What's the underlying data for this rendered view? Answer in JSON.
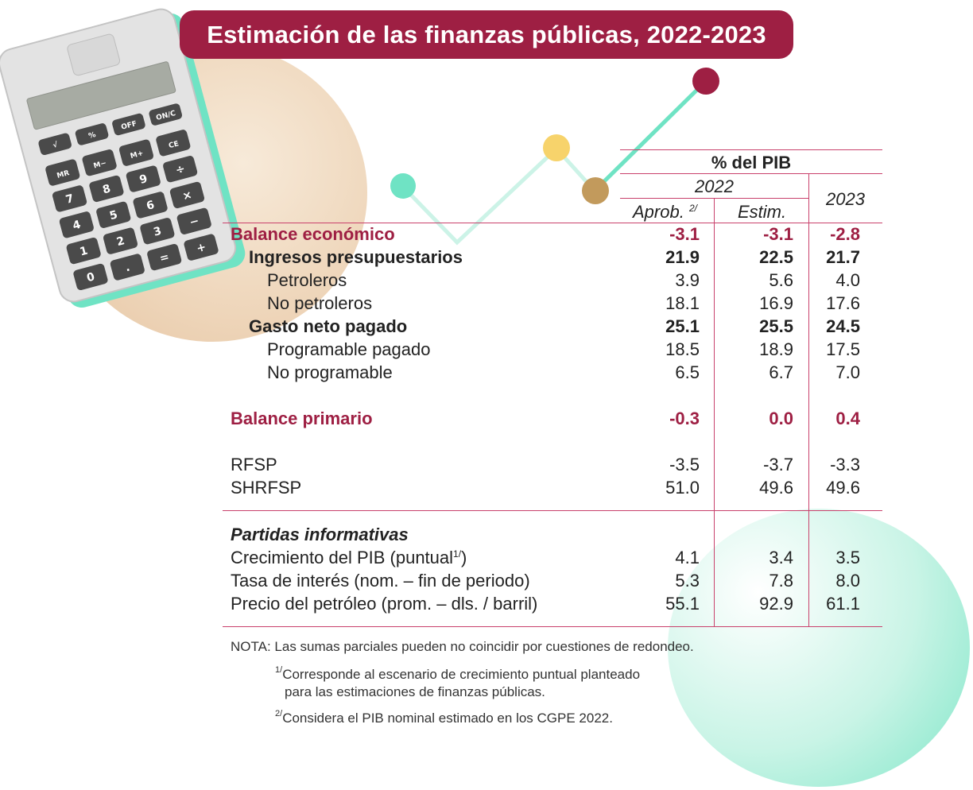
{
  "title": "Estimación de las finanzas públicas, 2022-2023",
  "header": {
    "unit": "% del PIB",
    "year_2022": "2022",
    "year_2023": "2023",
    "col_aprob": "Aprob.",
    "col_aprob_sup": "2/",
    "col_estim": "Estim."
  },
  "rows": {
    "balance_economico": {
      "label": "Balance económico",
      "aprob": "-3.1",
      "estim": "-3.1",
      "y2023": "-2.8"
    },
    "ingresos": {
      "label": "Ingresos presupuestarios",
      "aprob": "21.9",
      "estim": "22.5",
      "y2023": "21.7"
    },
    "petroleros": {
      "label": "Petroleros",
      "aprob": "3.9",
      "estim": "5.6",
      "y2023": "4.0"
    },
    "no_petroleros": {
      "label": "No petroleros",
      "aprob": "18.1",
      "estim": "16.9",
      "y2023": "17.6"
    },
    "gasto": {
      "label": "Gasto neto pagado",
      "aprob": "25.1",
      "estim": "25.5",
      "y2023": "24.5"
    },
    "programable": {
      "label": "Programable pagado",
      "aprob": "18.5",
      "estim": "18.9",
      "y2023": "17.5"
    },
    "no_programable": {
      "label": "No programable",
      "aprob": "6.5",
      "estim": "6.7",
      "y2023": "7.0"
    },
    "balance_primario": {
      "label": "Balance primario",
      "aprob": "-0.3",
      "estim": "0.0",
      "y2023": "0.4"
    },
    "rfsp": {
      "label": "RFSP",
      "aprob": "-3.5",
      "estim": "-3.7",
      "y2023": "-3.3"
    },
    "shrfsp": {
      "label": "SHRFSP",
      "aprob": "51.0",
      "estim": "49.6",
      "y2023": "49.6"
    }
  },
  "partidas": {
    "heading": "Partidas informativas",
    "crecimiento": {
      "label": "Crecimiento del PIB (puntual",
      "sup": "1/",
      "label_end": ")",
      "aprob": "4.1",
      "estim": "3.4",
      "y2023": "3.5"
    },
    "tasa": {
      "label": "Tasa de interés (nom.  – fin de periodo)",
      "aprob": "5.3",
      "estim": "7.8",
      "y2023": "8.0"
    },
    "precio": {
      "label": "Precio del petróleo (prom.  – dls. / barril)",
      "aprob": "55.1",
      "estim": "92.9",
      "y2023": "61.1"
    }
  },
  "notes": {
    "nota": "NOTA: Las sumas parciales pueden no coincidir por cuestiones de redondeo.",
    "n1_sup": "1/",
    "n1_line1": "Corresponde al escenario de crecimiento puntual planteado",
    "n1_line2": "para las estimaciones de finanzas públicas.",
    "n2_sup": "2/",
    "n2_line1": "Considera el PIB nominal estimado en los CGPE 2022."
  },
  "calculator": {
    "keys": [
      "√",
      "%",
      "OFF",
      "ON/C",
      "MR",
      "M−",
      "M+",
      "CE",
      "7",
      "8",
      "9",
      "÷",
      "4",
      "5",
      "6",
      "×",
      "1",
      "2",
      "3",
      "−",
      "0",
      ".",
      "=",
      "+"
    ]
  },
  "colors": {
    "maroon": "#9e1f43",
    "rule": "#c9416c",
    "mint": "#6fe3c4",
    "gold": "#f7d36b",
    "bronze": "#c29a5c"
  }
}
